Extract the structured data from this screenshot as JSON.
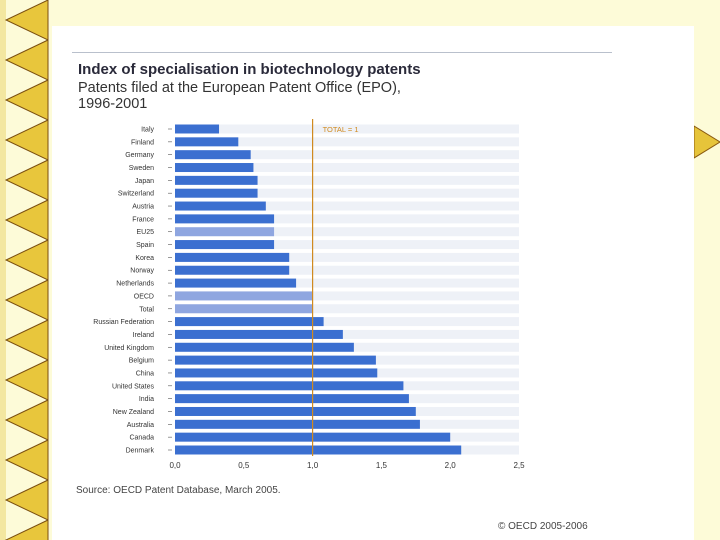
{
  "slide": {
    "title": "Index of specialisation in biotechnology patents",
    "subtitle_line1": "Patents filed at the European Patent Office (EPO),",
    "subtitle_line2": "1996-2001",
    "source": "Source: OECD Patent Database, March 2005.",
    "copyright": "© OECD 2005-2006"
  },
  "colors": {
    "bar": "#3b6fd0",
    "bar_highlight": "#8fa6e0",
    "stripe": "#eef1f7",
    "reference_line": "#d08a20",
    "background": "#fdfbd8"
  },
  "chart_data": {
    "type": "bar",
    "orientation": "horizontal",
    "title": "Index of specialisation in biotechnology patents",
    "annotation": "TOTAL = 1",
    "reference_value": 1.0,
    "xlim": [
      0,
      2.5
    ],
    "xticks": [
      "0,0",
      "0,5",
      "1,0",
      "1,5",
      "2,0",
      "2,5"
    ],
    "categories": [
      "Italy",
      "Finland",
      "Germany",
      "Sweden",
      "Japan",
      "Switzerland",
      "Austria",
      "France",
      "EU25",
      "Spain",
      "Korea",
      "Norway",
      "Netherlands",
      "OECD",
      "Total",
      "Russian Federation",
      "Ireland",
      "United Kingdom",
      "Belgium",
      "China",
      "United States",
      "India",
      "New Zealand",
      "Australia",
      "Canada",
      "Denmark"
    ],
    "values": [
      0.32,
      0.46,
      0.55,
      0.57,
      0.6,
      0.6,
      0.66,
      0.72,
      0.72,
      0.72,
      0.83,
      0.83,
      0.88,
      1.0,
      1.0,
      1.08,
      1.22,
      1.3,
      1.46,
      1.47,
      1.66,
      1.7,
      1.75,
      1.78,
      2.0,
      2.08
    ],
    "highlight": [
      "EU25",
      "OECD",
      "Total"
    ]
  }
}
